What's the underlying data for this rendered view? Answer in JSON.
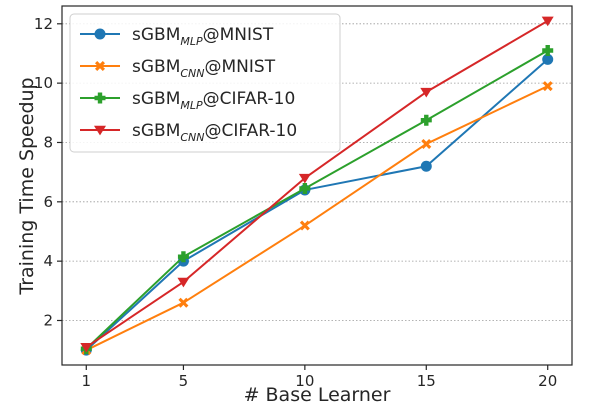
{
  "chart_data": {
    "type": "line",
    "title": "",
    "xlabel": "# Base Learner",
    "ylabel": "Training Time Speedup",
    "x": [
      1,
      5,
      10,
      15,
      20
    ],
    "xticks": [
      1,
      5,
      10,
      15,
      20
    ],
    "yticks": [
      2,
      4,
      6,
      8,
      10,
      12
    ],
    "xlim": [
      0,
      21
    ],
    "ylim": [
      0.5,
      12.6
    ],
    "grid": "horizontal dotted",
    "legend_position": "top-left",
    "series": [
      {
        "name": "sGBM@MNIST",
        "name_base": "sGBM",
        "name_sub": "MLP",
        "name_suffix": "@MNIST",
        "color": "#1f77b4",
        "marker": "circle",
        "values": [
          1.0,
          4.0,
          6.4,
          7.2,
          10.8
        ]
      },
      {
        "name": "sGBM@MNIST",
        "name_base": "sGBM",
        "name_sub": "CNN",
        "name_suffix": "@MNIST",
        "color": "#ff7f0e",
        "marker": "x-cross",
        "values": [
          1.0,
          2.6,
          5.2,
          7.95,
          9.9
        ]
      },
      {
        "name": "sGBM@CIFAR-10",
        "name_base": "sGBM",
        "name_sub": "MLP",
        "name_suffix": "@CIFAR-10",
        "color": "#2ca02c",
        "marker": "plus",
        "values": [
          1.05,
          4.15,
          6.45,
          8.75,
          11.1
        ]
      },
      {
        "name": "sGBM@CIFAR-10",
        "name_base": "sGBM",
        "name_sub": "CNN",
        "name_suffix": "@CIFAR-10",
        "color": "#d62728",
        "marker": "triangle-down",
        "values": [
          1.1,
          3.3,
          6.8,
          9.7,
          12.1
        ]
      }
    ]
  }
}
